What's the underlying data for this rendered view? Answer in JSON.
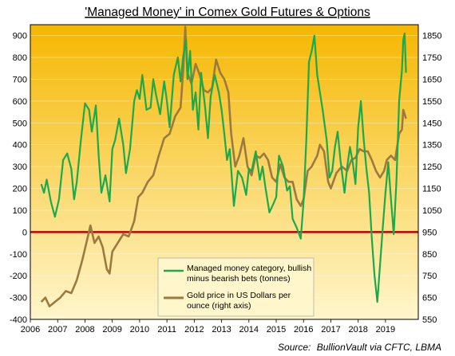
{
  "chart_data": {
    "type": "line",
    "title": "'Managed Money' in Comex Gold Futures & Options",
    "source_label": "Source:",
    "source_text": "BullionVault via CFTC, LBMA",
    "x_ticks": [
      "2006",
      "2007",
      "2008",
      "2009",
      "2010",
      "2011",
      "2012",
      "2013",
      "2014",
      "2015",
      "2016",
      "2017",
      "2018",
      "2019"
    ],
    "xlim": [
      2006.0,
      2020.2
    ],
    "left_axis": {
      "ylim": [
        -400,
        950
      ],
      "ticks": [
        -400,
        -300,
        -200,
        -100,
        0,
        100,
        200,
        300,
        400,
        500,
        600,
        700,
        800,
        900
      ]
    },
    "right_axis": {
      "ylim": [
        550,
        1900
      ],
      "ticks": [
        550,
        650,
        750,
        850,
        950,
        1050,
        1150,
        1250,
        1350,
        1450,
        1550,
        1650,
        1750,
        1850
      ]
    },
    "zero_line": 0,
    "legend": {
      "placement": "bottom-center"
    },
    "series": [
      {
        "name": "Managed money category, bullish minus bearish bets (tonnes)",
        "axis": "left",
        "color": "#1aaa4c",
        "x": [
          2006.4,
          2006.5,
          2006.6,
          2006.75,
          2006.9,
          2007.05,
          2007.2,
          2007.35,
          2007.5,
          2007.6,
          2007.7,
          2007.85,
          2008.0,
          2008.15,
          2008.25,
          2008.4,
          2008.5,
          2008.6,
          2008.75,
          2008.9,
          2009.0,
          2009.1,
          2009.25,
          2009.4,
          2009.5,
          2009.65,
          2009.8,
          2009.9,
          2010.0,
          2010.1,
          2010.25,
          2010.4,
          2010.5,
          2010.6,
          2010.75,
          2010.9,
          2011.0,
          2011.1,
          2011.25,
          2011.4,
          2011.5,
          2011.6,
          2011.7,
          2011.75,
          2011.85,
          2011.95,
          2012.05,
          2012.15,
          2012.25,
          2012.4,
          2012.5,
          2012.6,
          2012.75,
          2012.9,
          2013.0,
          2013.1,
          2013.2,
          2013.3,
          2013.45,
          2013.6,
          2013.75,
          2013.9,
          2014.0,
          2014.1,
          2014.25,
          2014.4,
          2014.5,
          2014.6,
          2014.75,
          2014.9,
          2015.0,
          2015.1,
          2015.25,
          2015.4,
          2015.5,
          2015.6,
          2015.75,
          2015.9,
          2016.0,
          2016.1,
          2016.2,
          2016.3,
          2016.4,
          2016.5,
          2016.6,
          2016.7,
          2016.85,
          2016.95,
          2017.05,
          2017.15,
          2017.25,
          2017.35,
          2017.5,
          2017.6,
          2017.7,
          2017.8,
          2017.9,
          2018.0,
          2018.1,
          2018.2,
          2018.3,
          2018.4,
          2018.5,
          2018.6,
          2018.7,
          2018.8,
          2018.9,
          2019.0,
          2019.1,
          2019.2,
          2019.3,
          2019.4,
          2019.5,
          2019.6,
          2019.65,
          2019.7,
          2019.75
        ],
        "values": [
          220,
          180,
          240,
          140,
          70,
          150,
          330,
          360,
          290,
          150,
          230,
          420,
          590,
          560,
          460,
          580,
          350,
          180,
          260,
          140,
          380,
          420,
          520,
          400,
          270,
          380,
          600,
          650,
          610,
          720,
          560,
          570,
          700,
          630,
          540,
          690,
          600,
          480,
          720,
          800,
          690,
          810,
          880,
          700,
          830,
          560,
          640,
          470,
          730,
          570,
          430,
          620,
          720,
          640,
          560,
          450,
          330,
          380,
          120,
          280,
          250,
          170,
          290,
          280,
          370,
          240,
          300,
          210,
          90,
          130,
          160,
          350,
          300,
          190,
          210,
          60,
          20,
          -30,
          140,
          420,
          780,
          830,
          900,
          720,
          640,
          560,
          420,
          250,
          280,
          390,
          460,
          330,
          180,
          300,
          390,
          320,
          220,
          480,
          600,
          430,
          290,
          180,
          -30,
          -200,
          -320,
          -150,
          20,
          180,
          320,
          150,
          -10,
          230,
          600,
          740,
          880,
          910,
          730
        ]
      },
      {
        "name": "Gold price in US Dollars per ounce (right axis)",
        "axis": "right",
        "color": "#9c7a3f",
        "x": [
          2006.4,
          2006.55,
          2006.7,
          2006.9,
          2007.1,
          2007.3,
          2007.5,
          2007.7,
          2007.9,
          2008.05,
          2008.2,
          2008.35,
          2008.5,
          2008.65,
          2008.8,
          2008.9,
          2009.0,
          2009.2,
          2009.4,
          2009.6,
          2009.8,
          2009.95,
          2010.1,
          2010.3,
          2010.5,
          2010.7,
          2010.9,
          2011.1,
          2011.3,
          2011.5,
          2011.6,
          2011.67,
          2011.75,
          2011.9,
          2012.05,
          2012.2,
          2012.35,
          2012.5,
          2012.65,
          2012.8,
          2012.95,
          2013.1,
          2013.25,
          2013.35,
          2013.5,
          2013.65,
          2013.8,
          2013.95,
          2014.1,
          2014.25,
          2014.4,
          2014.55,
          2014.7,
          2014.85,
          2015.0,
          2015.15,
          2015.3,
          2015.45,
          2015.6,
          2015.75,
          2015.9,
          2016.0,
          2016.15,
          2016.3,
          2016.5,
          2016.6,
          2016.75,
          2016.9,
          2017.0,
          2017.2,
          2017.4,
          2017.6,
          2017.75,
          2017.9,
          2018.05,
          2018.2,
          2018.35,
          2018.5,
          2018.65,
          2018.8,
          2018.95,
          2019.05,
          2019.2,
          2019.35,
          2019.5,
          2019.6,
          2019.65,
          2019.7,
          2019.75
        ],
        "values": [
          630,
          650,
          610,
          630,
          650,
          680,
          670,
          730,
          820,
          900,
          980,
          900,
          930,
          880,
          780,
          760,
          860,
          900,
          940,
          930,
          1000,
          1110,
          1130,
          1180,
          1210,
          1300,
          1380,
          1400,
          1480,
          1520,
          1700,
          1890,
          1680,
          1630,
          1720,
          1670,
          1600,
          1590,
          1610,
          1740,
          1680,
          1650,
          1590,
          1400,
          1250,
          1300,
          1380,
          1250,
          1210,
          1300,
          1290,
          1310,
          1280,
          1200,
          1180,
          1260,
          1200,
          1180,
          1180,
          1100,
          1070,
          1100,
          1230,
          1250,
          1300,
          1350,
          1320,
          1180,
          1150,
          1220,
          1250,
          1230,
          1280,
          1290,
          1330,
          1320,
          1320,
          1280,
          1230,
          1200,
          1230,
          1280,
          1300,
          1280,
          1400,
          1420,
          1510,
          1490,
          1470
        ]
      }
    ]
  },
  "colors": {
    "plot_top": "#f5b700",
    "plot_bottom": "#fff6cc",
    "zero_line": "#c00000",
    "frame": "#000000"
  }
}
